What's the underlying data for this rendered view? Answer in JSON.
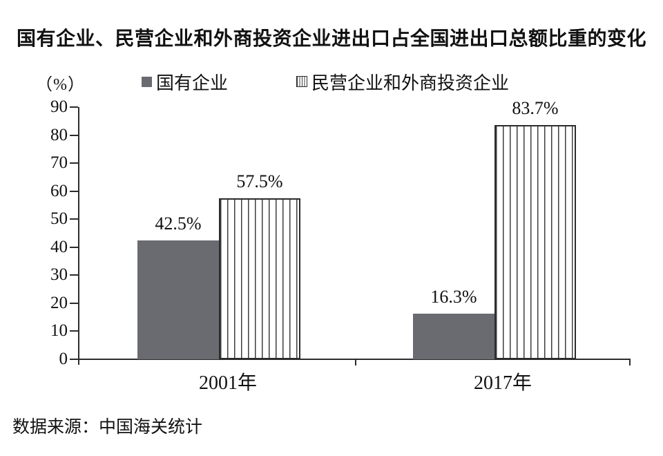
{
  "title": "国有企业、民营企业和外商投资企业进出口占全国进出口总额比重的变化",
  "unit_label": "（%）",
  "legend": [
    {
      "label": "国有企业",
      "swatch": "solid-gray-square-icon"
    },
    {
      "label": "民营企业和外商投资企业",
      "swatch": "striped-square-icon"
    }
  ],
  "source": "数据来源：中国海关统计",
  "colors": {
    "solid_bar": "#6a6b70",
    "stripe_line": "#3d3d3d",
    "stripe_background": "#ffffff",
    "axis": "#2b2b2b",
    "text": "#111111"
  },
  "chart_data": {
    "type": "bar",
    "title": "国有企业、民营企业和外商投资企业进出口占全国进出口总额比重的变化",
    "categories": [
      "2001年",
      "2017年"
    ],
    "series": [
      {
        "name": "国有企业",
        "fill": "solid",
        "values": [
          42.5,
          16.3
        ]
      },
      {
        "name": "民营企业和外商投资企业",
        "fill": "striped-vertical",
        "values": [
          57.5,
          83.7
        ]
      }
    ],
    "data_labels": [
      [
        "42.5%",
        "16.3%"
      ],
      [
        "57.5%",
        "83.7%"
      ]
    ],
    "ylabel": "（%）",
    "ylim": [
      0,
      90
    ],
    "yticks": [
      0,
      10,
      20,
      30,
      40,
      50,
      60,
      70,
      80,
      90
    ],
    "grid": false,
    "legend_position": "top",
    "source": "数据来源：中国海关统计"
  }
}
